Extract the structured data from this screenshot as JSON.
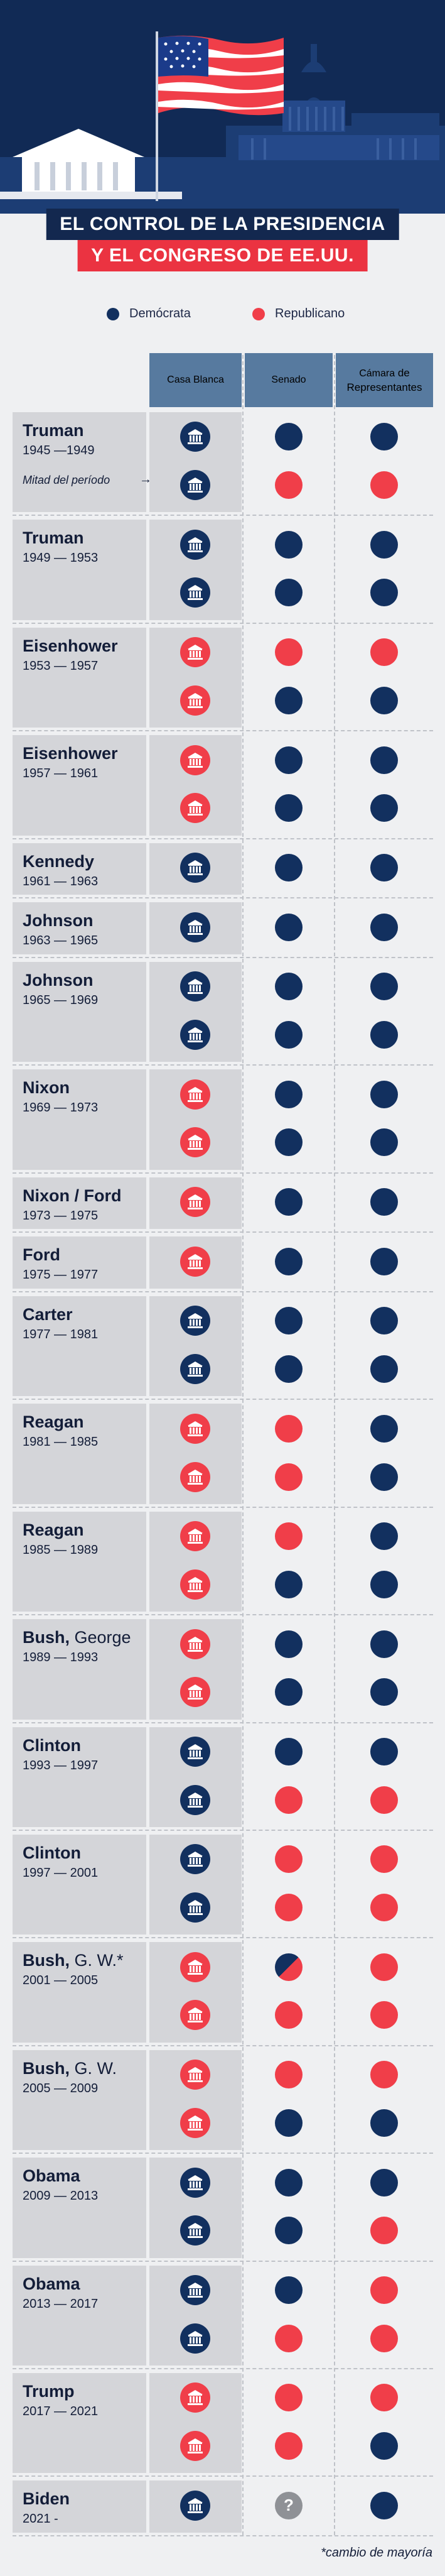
{
  "colors": {
    "dem": "#12305f",
    "rep": "#f03e49",
    "header_bg": "#112a55",
    "column_header": "#577a9f",
    "band": "#d4d5d9"
  },
  "title": {
    "line1": "EL CONTROL DE LA PRESIDENCIA",
    "line2": "Y EL CONGRESO DE EE.UU."
  },
  "legend": {
    "dem": "Demócrata",
    "rep": "Republicano"
  },
  "columns": {
    "house": "Casa Blanca",
    "senate": "Senado",
    "chamber_bold": "Cámara",
    "chamber_rest": " de",
    "chamber_line2": "Representantes"
  },
  "midterm_label": "Mitad del período",
  "footnote": "*cambio de mayoría",
  "terms": [
    {
      "name_bold": "Truman",
      "name_rest": "",
      "years": "1945 —1949",
      "midnote": true,
      "rows": [
        [
          "D",
          "D",
          "D"
        ],
        [
          "D",
          "R",
          "R"
        ]
      ]
    },
    {
      "name_bold": "Truman",
      "name_rest": "",
      "years": "1949 — 1953",
      "rows": [
        [
          "D",
          "D",
          "D"
        ],
        [
          "D",
          "D",
          "D"
        ]
      ]
    },
    {
      "name_bold": "Eisenhower",
      "name_rest": "",
      "years": "1953 — 1957",
      "rows": [
        [
          "R",
          "R",
          "R"
        ],
        [
          "R",
          "D",
          "D"
        ]
      ]
    },
    {
      "name_bold": "Eisenhower",
      "name_rest": "",
      "years": "1957 — 1961",
      "rows": [
        [
          "R",
          "D",
          "D"
        ],
        [
          "R",
          "D",
          "D"
        ]
      ]
    },
    {
      "name_bold": "Kennedy",
      "name_rest": "",
      "years": "1961 — 1963",
      "rows": [
        [
          "D",
          "D",
          "D"
        ]
      ]
    },
    {
      "name_bold": "Johnson",
      "name_rest": "",
      "years": "1963 — 1965",
      "rows": [
        [
          "D",
          "D",
          "D"
        ]
      ]
    },
    {
      "name_bold": "Johnson",
      "name_rest": "",
      "years": "1965 — 1969",
      "rows": [
        [
          "D",
          "D",
          "D"
        ],
        [
          "D",
          "D",
          "D"
        ]
      ]
    },
    {
      "name_bold": "Nixon",
      "name_rest": "",
      "years": "1969 — 1973",
      "rows": [
        [
          "R",
          "D",
          "D"
        ],
        [
          "R",
          "D",
          "D"
        ]
      ]
    },
    {
      "name_bold": "Nixon / Ford",
      "name_rest": "",
      "years": "1973 — 1975",
      "rows": [
        [
          "R",
          "D",
          "D"
        ]
      ]
    },
    {
      "name_bold": "Ford",
      "name_rest": "",
      "years": "1975 — 1977",
      "rows": [
        [
          "R",
          "D",
          "D"
        ]
      ]
    },
    {
      "name_bold": "Carter",
      "name_rest": "",
      "years": "1977 — 1981",
      "rows": [
        [
          "D",
          "D",
          "D"
        ],
        [
          "D",
          "D",
          "D"
        ]
      ]
    },
    {
      "name_bold": "Reagan",
      "name_rest": "",
      "years": "1981 — 1985",
      "rows": [
        [
          "R",
          "R",
          "D"
        ],
        [
          "R",
          "R",
          "D"
        ]
      ]
    },
    {
      "name_bold": "Reagan",
      "name_rest": "",
      "years": "1985 — 1989",
      "rows": [
        [
          "R",
          "R",
          "D"
        ],
        [
          "R",
          "D",
          "D"
        ]
      ]
    },
    {
      "name_bold": "Bush,",
      "name_rest": " George",
      "years": "1989 — 1993",
      "rows": [
        [
          "R",
          "D",
          "D"
        ],
        [
          "R",
          "D",
          "D"
        ]
      ]
    },
    {
      "name_bold": "Clinton",
      "name_rest": "",
      "years": "1993 — 1997",
      "rows": [
        [
          "D",
          "D",
          "D"
        ],
        [
          "D",
          "R",
          "R"
        ]
      ]
    },
    {
      "name_bold": "Clinton",
      "name_rest": "",
      "years": "1997 — 2001",
      "rows": [
        [
          "D",
          "R",
          "R"
        ],
        [
          "D",
          "R",
          "R"
        ]
      ]
    },
    {
      "name_bold": "Bush,",
      "name_rest": " G. W.*",
      "years": "2001 — 2005",
      "rows": [
        [
          "R",
          "S",
          "R"
        ],
        [
          "R",
          "R",
          "R"
        ]
      ]
    },
    {
      "name_bold": "Bush,",
      "name_rest": " G. W.",
      "years": "2005 — 2009",
      "rows": [
        [
          "R",
          "R",
          "R"
        ],
        [
          "R",
          "D",
          "D"
        ]
      ]
    },
    {
      "name_bold": "Obama",
      "name_rest": "",
      "years": "2009 — 2013",
      "rows": [
        [
          "D",
          "D",
          "D"
        ],
        [
          "D",
          "D",
          "R"
        ]
      ]
    },
    {
      "name_bold": "Obama",
      "name_rest": "",
      "years": "2013 — 2017",
      "rows": [
        [
          "D",
          "D",
          "R"
        ],
        [
          "D",
          "R",
          "R"
        ]
      ]
    },
    {
      "name_bold": "Trump",
      "name_rest": "",
      "years": "2017 — 2021",
      "rows": [
        [
          "R",
          "R",
          "R"
        ],
        [
          "R",
          "R",
          "D"
        ]
      ]
    },
    {
      "name_bold": "Biden",
      "name_rest": "",
      "years": "2021 -",
      "rows": [
        [
          "D",
          "?",
          "D"
        ]
      ]
    }
  ]
}
